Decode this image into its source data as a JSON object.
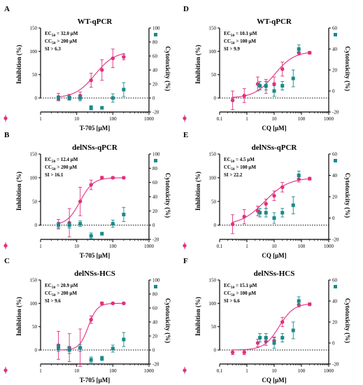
{
  "colors": {
    "inhibition": "#e0307e",
    "cytotoxicity": "#1a8a8a",
    "axis": "#000000"
  },
  "chart_data": [
    {
      "type": "scatter",
      "panel": "A",
      "title": "WT-qPCR",
      "xlabel": "T-705 [μM]",
      "ylabel": "Inhibition (%)",
      "y2label": "Cytotoxicity (%)",
      "xscale": "log",
      "xlim": [
        1,
        1000
      ],
      "xticks": [
        1,
        10,
        100,
        1000
      ],
      "xticklabels": [
        "1",
        "10",
        "100",
        "1000"
      ],
      "ylim": [
        -30,
        150
      ],
      "yticks": [
        0,
        50,
        100,
        150
      ],
      "y2lim": [
        -20,
        100
      ],
      "y2ticks": [
        -20,
        0,
        20,
        40,
        60,
        80,
        100
      ],
      "annotation": [
        "EC50 = 32.0 μM",
        "CC50 > 200 μM",
        "SI > 6.3"
      ],
      "series": [
        {
          "role": "inhibition",
          "marker": "circle",
          "axis": "left",
          "x": [
            3.125,
            6.25,
            12.5,
            25,
            50,
            100,
            200
          ],
          "y": [
            2,
            2,
            5,
            38,
            60,
            85,
            88
          ],
          "err": [
            8,
            6,
            8,
            15,
            22,
            20,
            6
          ],
          "fit": {
            "bottom": 0,
            "top": 100,
            "ec50": 32.0,
            "hill": 1.6
          }
        },
        {
          "role": "cytotoxicity",
          "marker": "square",
          "axis": "right",
          "x": [
            3.125,
            6.25,
            12.5,
            25,
            50,
            100,
            200
          ],
          "y": [
            0,
            0,
            0,
            -14,
            -14,
            0,
            12
          ],
          "err": [
            3,
            3,
            4,
            3,
            2,
            6,
            10
          ]
        }
      ]
    },
    {
      "type": "scatter",
      "panel": "D",
      "title": "WT-qPCR",
      "xlabel": "CQ [μM]",
      "ylabel": "Inhibition (%)",
      "y2label": "Cytotoxicity (%)",
      "xscale": "log",
      "xlim": [
        0.1,
        1000
      ],
      "xticks": [
        0.1,
        1,
        10,
        100,
        1000
      ],
      "xticklabels": [
        "0.1",
        "1",
        "10",
        "100",
        "1000"
      ],
      "ylim": [
        -30,
        150
      ],
      "yticks": [
        0,
        50,
        100,
        150
      ],
      "y2lim": [
        -20,
        60
      ],
      "y2ticks": [
        -20,
        0,
        20,
        40,
        60
      ],
      "annotation": [
        "EC50 = 10.1 μM",
        "CC50 > 100 μM",
        "SI > 9.9"
      ],
      "series": [
        {
          "role": "inhibition",
          "marker": "circle",
          "axis": "left",
          "x": [
            0.3,
            0.8,
            2.5,
            5,
            10,
            20,
            80,
            200
          ],
          "y": [
            -5,
            5,
            30,
            25,
            30,
            62,
            97,
            97
          ],
          "err": [
            20,
            15,
            15,
            15,
            15,
            15,
            5,
            3
          ],
          "fit": {
            "bottom": 0,
            "top": 100,
            "ec50": 10.1,
            "hill": 1.2
          }
        },
        {
          "role": "cytotoxicity",
          "marker": "square",
          "axis": "right",
          "x": [
            3,
            5,
            10,
            20,
            50,
            80
          ],
          "y": [
            5,
            5,
            0,
            5,
            12,
            40
          ],
          "err": [
            4,
            4,
            5,
            4,
            8,
            4
          ]
        }
      ]
    },
    {
      "type": "scatter",
      "panel": "B",
      "title": "delNSs-qPCR",
      "xlabel": "T-705 [μM]",
      "ylabel": "Inhibition (%)",
      "y2label": "Cytotoxicity (%)",
      "xscale": "log",
      "xlim": [
        1,
        1000
      ],
      "xticks": [
        1,
        10,
        100,
        1000
      ],
      "xticklabels": [
        "1",
        "10",
        "100",
        "1000"
      ],
      "ylim": [
        -30,
        150
      ],
      "yticks": [
        0,
        50,
        100,
        150
      ],
      "y2lim": [
        -20,
        100
      ],
      "y2ticks": [
        -20,
        0,
        20,
        40,
        60,
        80,
        100
      ],
      "annotation": [
        "EC50 = 12.4 μM",
        "CC50 > 200 μM",
        "SI > 16.1"
      ],
      "series": [
        {
          "role": "inhibition",
          "marker": "circle",
          "axis": "left",
          "x": [
            3.125,
            6.25,
            12.5,
            25,
            50,
            100,
            200
          ],
          "y": [
            2,
            5,
            50,
            85,
            100,
            100,
            100
          ],
          "err": [
            10,
            30,
            30,
            10,
            3,
            2,
            2
          ],
          "fit": {
            "bottom": 0,
            "top": 100,
            "ec50": 12.4,
            "hill": 2.4
          }
        },
        {
          "role": "cytotoxicity",
          "marker": "square",
          "axis": "right",
          "x": [
            3.125,
            6.25,
            12.5,
            25,
            50,
            100,
            200
          ],
          "y": [
            0,
            0,
            2,
            -15,
            -12,
            2,
            15
          ],
          "err": [
            4,
            4,
            4,
            4,
            2,
            5,
            10
          ]
        }
      ]
    },
    {
      "type": "scatter",
      "panel": "E",
      "title": "delNSs-qPCR",
      "xlabel": "CQ [μM]",
      "ylabel": "Inhibition (%)",
      "y2label": "Cytotoxicity (%)",
      "xscale": "log",
      "xlim": [
        0.1,
        1000
      ],
      "xticks": [
        0.1,
        1,
        10,
        100,
        1000
      ],
      "xticklabels": [
        "0.1",
        "1",
        "10",
        "100",
        "1000"
      ],
      "ylim": [
        -30,
        150
      ],
      "yticks": [
        0,
        50,
        100,
        150
      ],
      "y2lim": [
        -20,
        60
      ],
      "y2ticks": [
        -20,
        0,
        20,
        40,
        60
      ],
      "annotation": [
        "EC50 = 4.5 μM",
        "CC50 > 100 μM",
        "SI > 22.2"
      ],
      "series": [
        {
          "role": "inhibition",
          "marker": "circle",
          "axis": "left",
          "x": [
            0.3,
            0.8,
            2.5,
            5,
            10,
            20,
            80,
            200
          ],
          "y": [
            2,
            18,
            30,
            45,
            62,
            80,
            97,
            98
          ],
          "err": [
            20,
            15,
            10,
            10,
            10,
            10,
            6,
            3
          ],
          "fit": {
            "bottom": 0,
            "top": 100,
            "ec50": 4.5,
            "hill": 1.0
          }
        },
        {
          "role": "cytotoxicity",
          "marker": "square",
          "axis": "right",
          "x": [
            3,
            5,
            10,
            20,
            50,
            80
          ],
          "y": [
            5,
            5,
            0,
            5,
            12,
            40
          ],
          "err": [
            4,
            4,
            5,
            4,
            8,
            4
          ]
        }
      ]
    },
    {
      "type": "scatter",
      "panel": "C",
      "title": "delNSs-HCS",
      "xlabel": "T-705 [μM]",
      "ylabel": "Inhibition (%)",
      "y2label": "Cytotoxicity (%)",
      "xscale": "log",
      "xlim": [
        1,
        1000
      ],
      "xticks": [
        1,
        10,
        100,
        1000
      ],
      "xticklabels": [
        "1",
        "10",
        "100",
        "1000"
      ],
      "ylim": [
        -30,
        150
      ],
      "yticks": [
        0,
        50,
        100,
        150
      ],
      "y2lim": [
        -20,
        100
      ],
      "y2ticks": [
        -20,
        0,
        20,
        40,
        60,
        80,
        100
      ],
      "annotation": [
        "EC50 = 20.9 μM",
        "CC50 > 200 μM",
        "SI > 9.6"
      ],
      "series": [
        {
          "role": "inhibition",
          "marker": "circle",
          "axis": "left",
          "x": [
            3.125,
            6.25,
            12.5,
            25,
            50,
            100,
            200
          ],
          "y": [
            10,
            5,
            5,
            65,
            100,
            100,
            100
          ],
          "err": [
            30,
            30,
            40,
            8,
            3,
            2,
            2
          ],
          "fit": {
            "bottom": 0,
            "top": 100,
            "ec50": 20.9,
            "hill": 3.5
          }
        },
        {
          "role": "cytotoxicity",
          "marker": "square",
          "axis": "right",
          "x": [
            3.125,
            6.25,
            12.5,
            25,
            50,
            100,
            200
          ],
          "y": [
            3,
            0,
            3,
            -14,
            -12,
            2,
            15
          ],
          "err": [
            5,
            5,
            5,
            4,
            3,
            5,
            10
          ]
        }
      ]
    },
    {
      "type": "scatter",
      "panel": "F",
      "title": "delNSs-HCS",
      "xlabel": "CQ [μM]",
      "ylabel": "Inhibition (%)",
      "y2label": "Cytotoxicity (%)",
      "xscale": "log",
      "xlim": [
        0.1,
        1000
      ],
      "xticks": [
        0.1,
        1,
        10,
        100,
        1000
      ],
      "xticklabels": [
        "0.1",
        "1",
        "10",
        "100",
        "1000"
      ],
      "ylim": [
        -30,
        150
      ],
      "yticks": [
        0,
        50,
        100,
        150
      ],
      "y2lim": [
        -20,
        60
      ],
      "y2ticks": [
        -20,
        0,
        20,
        40,
        60
      ],
      "annotation": [
        "EC50 = 15.1 μM",
        "CC50 > 100 μM",
        "SI > 6.6"
      ],
      "series": [
        {
          "role": "inhibition",
          "marker": "circle",
          "axis": "left",
          "x": [
            0.3,
            0.8,
            2.5,
            5,
            10,
            20,
            80,
            200
          ],
          "y": [
            -5,
            -5,
            15,
            18,
            20,
            60,
            97,
            98
          ],
          "err": [
            5,
            5,
            8,
            8,
            8,
            10,
            5,
            3
          ],
          "fit": {
            "bottom": 0,
            "top": 100,
            "ec50": 15.1,
            "hill": 1.6
          }
        },
        {
          "role": "cytotoxicity",
          "marker": "square",
          "axis": "right",
          "x": [
            3,
            5,
            10,
            20,
            50,
            80
          ],
          "y": [
            5,
            5,
            0,
            5,
            12,
            40
          ],
          "err": [
            4,
            4,
            5,
            4,
            8,
            4
          ]
        }
      ]
    }
  ]
}
